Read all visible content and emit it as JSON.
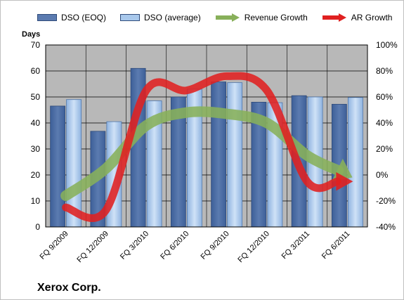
{
  "company": "Xerox Corp.",
  "colors": {
    "dso_eoq": "#5b7bb0",
    "dso_average": "#a8c8ec",
    "revenue_growth": "#88b05a",
    "ar_growth": "#e02020",
    "plot_background": "#b8b8b8",
    "gridline": "#000000"
  },
  "chart_data": {
    "type": "bar",
    "categories": [
      "FQ 9/2009",
      "FQ 12/2009",
      "FQ 3/2010",
      "FQ 6/2010",
      "FQ 9/2010",
      "FQ 12/2010",
      "FQ 3/2011",
      "FQ 6/2011"
    ],
    "ylabel": "Days",
    "ylim": [
      0,
      70
    ],
    "yticks": [
      "0",
      "10",
      "20",
      "30",
      "40",
      "50",
      "60",
      "70"
    ],
    "y2lim": [
      -40,
      100
    ],
    "y2ticks": [
      "-40%",
      "-20%",
      "0%",
      "20%",
      "40%",
      "60%",
      "80%",
      "100%"
    ],
    "grid": true,
    "legend_position": "top",
    "series": [
      {
        "name": "DSO (EOQ)",
        "kind": "bar",
        "axis": "left",
        "values": [
          46.5,
          36.8,
          61.0,
          50.0,
          55.8,
          48.0,
          50.5,
          47.2
        ]
      },
      {
        "name": "DSO (average)",
        "kind": "bar",
        "axis": "left",
        "values": [
          49.0,
          40.5,
          48.5,
          53.0,
          55.5,
          47.8,
          50.0,
          49.8
        ]
      },
      {
        "name": "Revenue Growth",
        "kind": "line",
        "axis": "right",
        "values": [
          -16,
          5,
          38,
          48,
          47,
          40,
          15,
          0
        ]
      },
      {
        "name": "AR Growth",
        "kind": "line",
        "axis": "right",
        "values": [
          -25,
          -27,
          65,
          65,
          76,
          65,
          -5,
          -5
        ]
      }
    ]
  }
}
